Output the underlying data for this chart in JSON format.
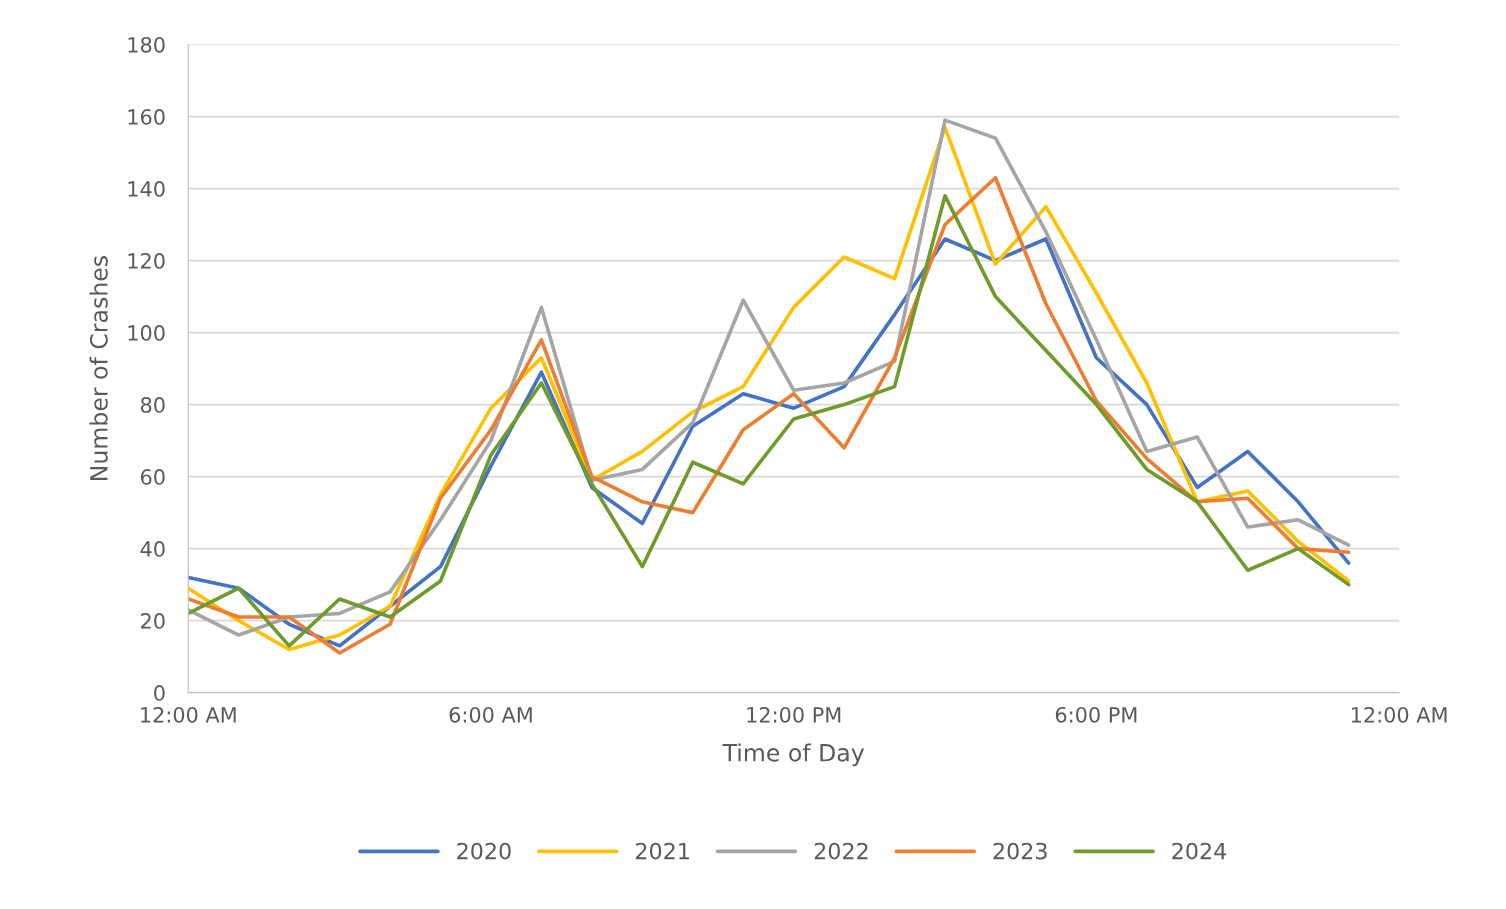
{
  "chart_data": {
    "type": "line",
    "xlabel": "Time of Day",
    "ylabel": "Number of Crashes",
    "x": [
      0,
      1,
      2,
      3,
      4,
      5,
      6,
      7,
      8,
      9,
      10,
      11,
      12,
      13,
      14,
      15,
      16,
      17,
      18,
      19,
      20,
      21,
      22,
      23
    ],
    "xlim": [
      0,
      24
    ],
    "xticks": [
      {
        "value": 0,
        "label": "12:00 AM"
      },
      {
        "value": 6,
        "label": "6:00 AM"
      },
      {
        "value": 12,
        "label": "12:00 PM"
      },
      {
        "value": 18,
        "label": "6:00 PM"
      },
      {
        "value": 24,
        "label": "12:00 AM"
      }
    ],
    "ylim": [
      0,
      180
    ],
    "yticks": [
      0,
      20,
      40,
      60,
      80,
      100,
      120,
      140,
      160,
      180
    ],
    "grid": "y",
    "legend": "bottom",
    "marker": "none",
    "line_style": "solid",
    "series": [
      {
        "name": "2020",
        "color": "#4472c4",
        "values": [
          32,
          29,
          19,
          13,
          24,
          35,
          63,
          89,
          57,
          47,
          74,
          83,
          79,
          85,
          105,
          126,
          120,
          126,
          93,
          80,
          57,
          67,
          53,
          36
        ]
      },
      {
        "name": "2021",
        "color": "#ffc000",
        "values": [
          29,
          20,
          12,
          16,
          24,
          55,
          79,
          93,
          59,
          67,
          78,
          85,
          107,
          121,
          115,
          157,
          119,
          135,
          111,
          86,
          53,
          56,
          42,
          31
        ]
      },
      {
        "name": "2022",
        "color": "#a5a5a5",
        "values": [
          23,
          16,
          21,
          22,
          28,
          48,
          70,
          107,
          59,
          62,
          75,
          109,
          84,
          86,
          92,
          159,
          154,
          128,
          98,
          67,
          71,
          46,
          48,
          41
        ]
      },
      {
        "name": "2023",
        "color": "#ed7d31",
        "values": [
          26,
          21,
          21,
          11,
          19,
          54,
          73,
          98,
          60,
          53,
          50,
          73,
          83,
          68,
          93,
          130,
          143,
          108,
          81,
          65,
          53,
          54,
          40,
          39
        ]
      },
      {
        "name": "2024",
        "color": "#6f9a2c",
        "values": [
          22,
          29,
          13,
          26,
          21,
          31,
          66,
          86,
          58,
          35,
          64,
          58,
          76,
          80,
          85,
          138,
          110,
          95,
          80,
          62,
          53,
          34,
          40,
          30
        ]
      }
    ]
  }
}
